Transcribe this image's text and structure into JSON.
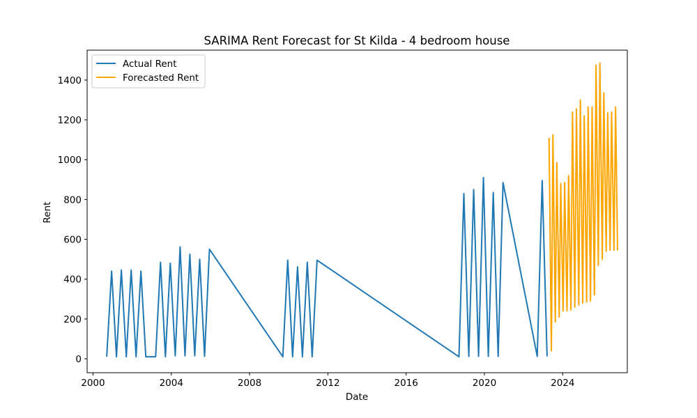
{
  "chart_data": {
    "type": "line",
    "title": "SARIMA Rent Forecast for St Kilda - 4 bedroom house",
    "xlabel": "Date",
    "ylabel": "Rent",
    "xlim": [
      1999.7,
      2027.3
    ],
    "ylim": [
      -70,
      1550
    ],
    "x_ticks": [
      2000,
      2004,
      2008,
      2012,
      2016,
      2020,
      2024
    ],
    "x_tick_labels": [
      "2000",
      "2004",
      "2008",
      "2012",
      "2016",
      "2020",
      "2024"
    ],
    "y_ticks": [
      0,
      200,
      400,
      600,
      800,
      1000,
      1200,
      1400
    ],
    "y_tick_labels": [
      "0",
      "200",
      "400",
      "600",
      "800",
      "1000",
      "1200",
      "1400"
    ],
    "grid": false,
    "legend_position": "top-left",
    "series": [
      {
        "name": "Actual Rent",
        "color": "#1f77b4",
        "points": [
          [
            2000.7,
            10
          ],
          [
            2000.95,
            440
          ],
          [
            2001.2,
            10
          ],
          [
            2001.45,
            445
          ],
          [
            2001.7,
            10
          ],
          [
            2001.95,
            445
          ],
          [
            2002.2,
            10
          ],
          [
            2002.45,
            440
          ],
          [
            2002.7,
            10
          ],
          [
            2003.2,
            10
          ],
          [
            2003.45,
            485
          ],
          [
            2003.7,
            10
          ],
          [
            2003.95,
            480
          ],
          [
            2004.2,
            15
          ],
          [
            2004.45,
            562
          ],
          [
            2004.7,
            15
          ],
          [
            2004.95,
            525
          ],
          [
            2005.2,
            15
          ],
          [
            2005.45,
            500
          ],
          [
            2005.7,
            12
          ],
          [
            2005.95,
            550
          ],
          [
            2009.7,
            10
          ],
          [
            2009.95,
            495
          ],
          [
            2010.2,
            10
          ],
          [
            2010.45,
            462
          ],
          [
            2010.7,
            10
          ],
          [
            2010.95,
            485
          ],
          [
            2011.2,
            10
          ],
          [
            2011.45,
            495
          ],
          [
            2018.7,
            10
          ],
          [
            2018.95,
            830
          ],
          [
            2019.2,
            12
          ],
          [
            2019.45,
            850
          ],
          [
            2019.7,
            12
          ],
          [
            2019.95,
            910
          ],
          [
            2020.2,
            12
          ],
          [
            2020.45,
            835
          ],
          [
            2020.7,
            12
          ],
          [
            2020.95,
            885
          ],
          [
            2022.7,
            12
          ],
          [
            2022.95,
            895
          ],
          [
            2023.2,
            12
          ]
        ]
      },
      {
        "name": "Forecasted Rent",
        "color": "#ffa500",
        "points": [
          [
            2023.3,
            1110
          ],
          [
            2023.42,
            40
          ],
          [
            2023.5,
            1125
          ],
          [
            2023.62,
            185
          ],
          [
            2023.7,
            985
          ],
          [
            2023.82,
            210
          ],
          [
            2023.9,
            880
          ],
          [
            2024.02,
            240
          ],
          [
            2024.1,
            885
          ],
          [
            2024.22,
            240
          ],
          [
            2024.3,
            920
          ],
          [
            2024.42,
            245
          ],
          [
            2024.5,
            1240
          ],
          [
            2024.62,
            260
          ],
          [
            2024.7,
            1255
          ],
          [
            2024.82,
            270
          ],
          [
            2024.9,
            1300
          ],
          [
            2025.02,
            280
          ],
          [
            2025.1,
            1220
          ],
          [
            2025.22,
            285
          ],
          [
            2025.3,
            1265
          ],
          [
            2025.42,
            290
          ],
          [
            2025.5,
            1265
          ],
          [
            2025.62,
            320
          ],
          [
            2025.7,
            1475
          ],
          [
            2025.82,
            470
          ],
          [
            2025.9,
            1485
          ],
          [
            2026.02,
            500
          ],
          [
            2026.1,
            1335
          ],
          [
            2026.22,
            540
          ],
          [
            2026.3,
            1235
          ],
          [
            2026.42,
            545
          ],
          [
            2026.5,
            1240
          ],
          [
            2026.62,
            545
          ],
          [
            2026.7,
            1265
          ],
          [
            2026.8,
            545
          ]
        ]
      }
    ]
  }
}
